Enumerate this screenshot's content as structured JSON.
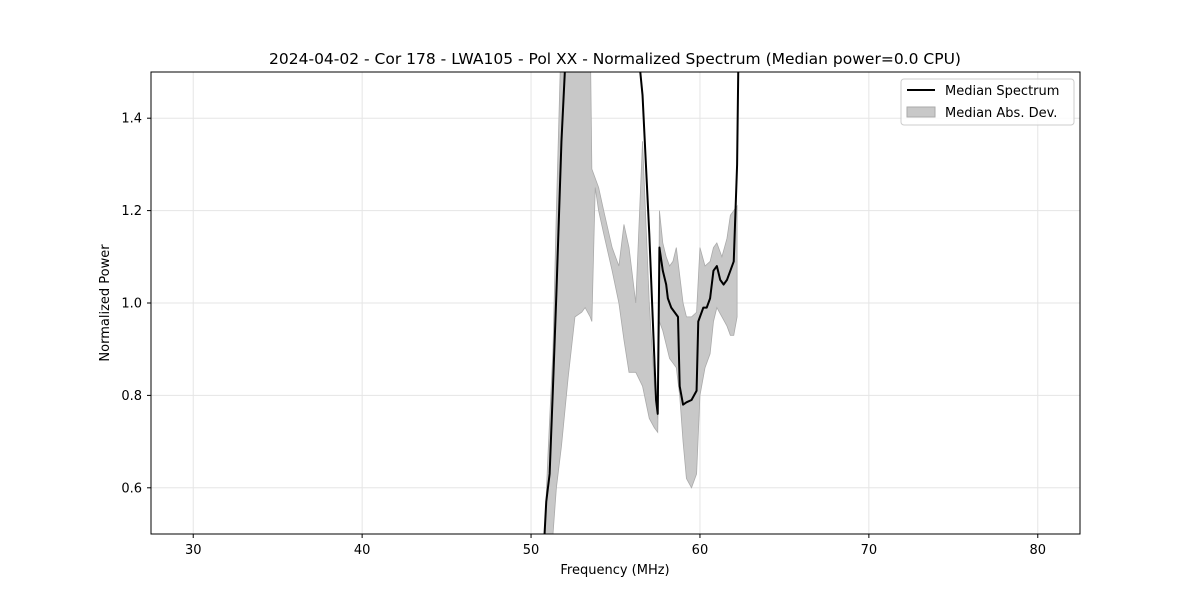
{
  "chart_data": {
    "type": "line",
    "title": "2024-04-02 - Cor 178 - LWA105 - Pol XX - Normalized Spectrum (Median power=0.0 CPU)",
    "xlabel": "Frequency (MHz)",
    "ylabel": "Normalized Power",
    "xlim": [
      27.5,
      82.5
    ],
    "ylim": [
      0.5,
      1.5
    ],
    "xticks": [
      30,
      40,
      50,
      60,
      70,
      80
    ],
    "yticks": [
      0.6,
      0.8,
      1.0,
      1.2,
      1.4
    ],
    "grid": true,
    "legend_position": "top-right",
    "colors": {
      "median_line": "#000000",
      "mad_fill": "#c8c8c8",
      "mad_edge": "#aaaaaa",
      "grid": "#e5e5e5"
    },
    "series": [
      {
        "name": "Median Spectrum",
        "kind": "line",
        "x": [
          50.8,
          50.9,
          51.1,
          51.3,
          51.5,
          51.8,
          52.0,
          52.3,
          56.2,
          56.6,
          57.0,
          57.4,
          57.5,
          57.6,
          57.8,
          58.0,
          58.1,
          58.3,
          58.5,
          58.7,
          58.8,
          59.0,
          59.2,
          59.5,
          59.8,
          59.9,
          60.0,
          60.2,
          60.4,
          60.6,
          60.8,
          61.0,
          61.2,
          61.4,
          61.6,
          61.8,
          62.0,
          62.2,
          62.3
        ],
        "y": [
          0.5,
          0.57,
          0.63,
          0.82,
          1.02,
          1.35,
          1.5,
          1.6,
          1.6,
          1.45,
          1.15,
          0.79,
          0.76,
          1.12,
          1.07,
          1.04,
          1.01,
          0.99,
          0.98,
          0.97,
          0.82,
          0.78,
          0.785,
          0.79,
          0.81,
          0.96,
          0.97,
          0.99,
          0.99,
          1.01,
          1.07,
          1.08,
          1.05,
          1.04,
          1.05,
          1.07,
          1.09,
          1.3,
          1.6
        ]
      },
      {
        "name": "Median Abs. Dev.",
        "kind": "band",
        "x": [
          50.8,
          51.0,
          51.3,
          51.5,
          51.8,
          52.2,
          52.6,
          53.0,
          53.2,
          53.5,
          53.6,
          53.8,
          54.0,
          54.3,
          54.8,
          55.2,
          55.5,
          55.8,
          56.2,
          56.6,
          57.0,
          57.3,
          57.5,
          57.6,
          57.8,
          58.0,
          58.2,
          58.4,
          58.6,
          58.8,
          59.0,
          59.2,
          59.5,
          59.8,
          60.0,
          60.3,
          60.6,
          60.8,
          61.0,
          61.3,
          61.6,
          61.8,
          62.0,
          62.2
        ],
        "upper": [
          0.5,
          0.67,
          0.9,
          1.2,
          1.6,
          1.6,
          1.6,
          1.6,
          1.6,
          1.6,
          1.29,
          1.27,
          1.25,
          1.2,
          1.12,
          1.08,
          1.17,
          1.12,
          1.0,
          1.35,
          1.0,
          0.82,
          0.75,
          1.2,
          1.13,
          1.1,
          1.08,
          1.09,
          1.12,
          1.06,
          1.0,
          0.97,
          0.97,
          0.98,
          1.12,
          1.08,
          1.09,
          1.12,
          1.13,
          1.1,
          1.14,
          1.19,
          1.2,
          1.21
        ],
        "lower": [
          0.5,
          0.5,
          0.5,
          0.6,
          0.69,
          0.84,
          0.97,
          0.98,
          0.99,
          0.97,
          0.96,
          1.25,
          1.2,
          1.15,
          1.07,
          1.0,
          0.92,
          0.85,
          0.85,
          0.82,
          0.75,
          0.73,
          0.72,
          0.96,
          0.94,
          0.91,
          0.88,
          0.87,
          0.86,
          0.8,
          0.7,
          0.62,
          0.6,
          0.63,
          0.8,
          0.86,
          0.89,
          0.96,
          0.99,
          0.97,
          0.95,
          0.93,
          0.93,
          0.97
        ]
      }
    ]
  }
}
